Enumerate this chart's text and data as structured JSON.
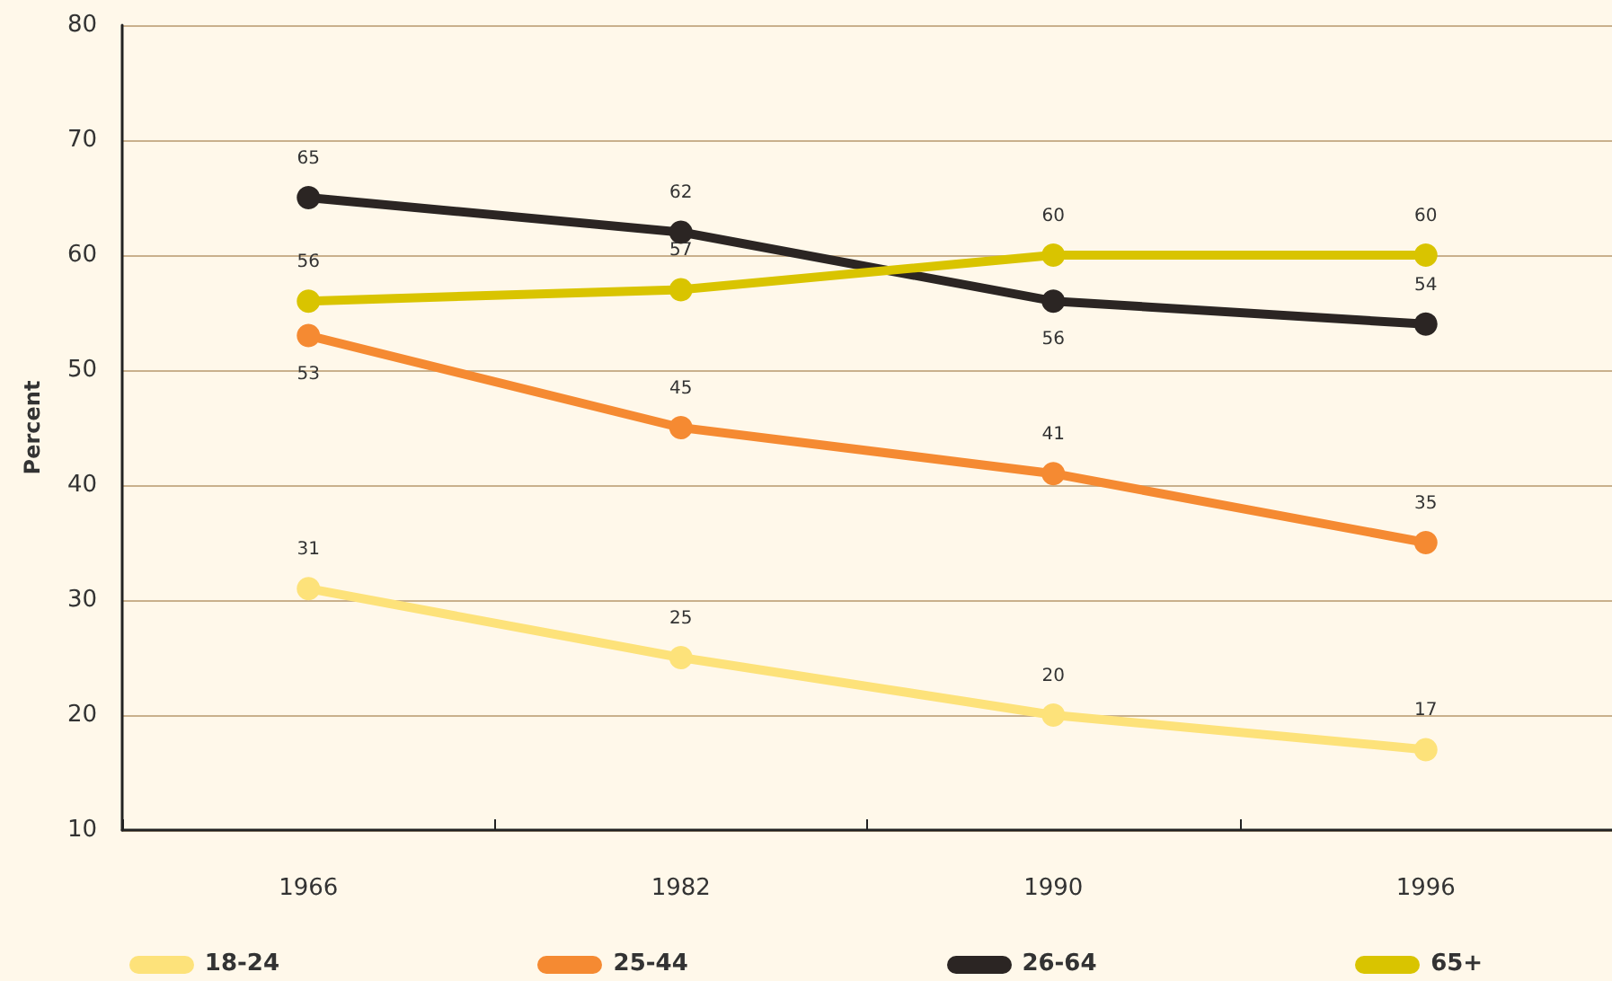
{
  "chart_data": {
    "type": "line",
    "ylabel": "Percent",
    "categories": [
      "1966",
      "1982",
      "1990",
      "1996"
    ],
    "series": [
      {
        "name": "18-24",
        "color": "#fde27a",
        "values": [
          31,
          25,
          20,
          17
        ]
      },
      {
        "name": "25-44",
        "color": "#f58a32",
        "values": [
          53,
          45,
          41,
          35
        ]
      },
      {
        "name": "26-64",
        "color": "#2b2523",
        "values": [
          65,
          62,
          56,
          54
        ]
      },
      {
        "name": "65+",
        "color": "#d9c400",
        "values": [
          56,
          57,
          60,
          60
        ]
      }
    ],
    "ylim": [
      10,
      80
    ],
    "yticks": [
      10,
      20,
      30,
      40,
      50,
      60,
      70,
      80
    ],
    "grid": "y",
    "legend": "bottom",
    "marker": "circle",
    "line_style": "solid",
    "data_labels": true
  }
}
